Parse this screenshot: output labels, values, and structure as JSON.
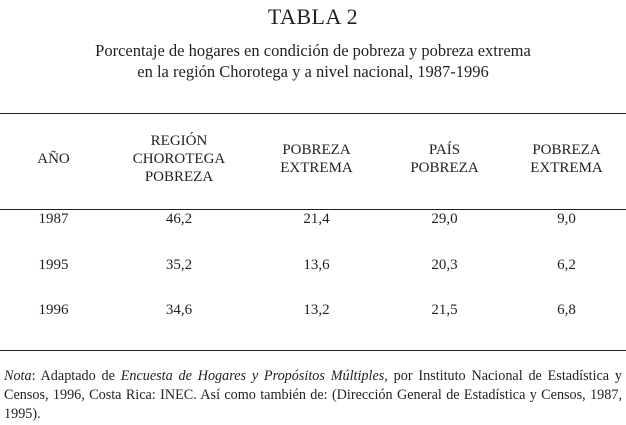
{
  "table_title": "TABLA 2",
  "subtitle_line1": "Porcentaje de hogares en condición de pobreza y pobreza extrema",
  "subtitle_line2": "en la región Chorotega y a nivel nacional, 1987-1996",
  "columns": [
    {
      "line1": "AÑO",
      "line2": "",
      "line3": ""
    },
    {
      "line1": "REGIÓN",
      "line2": "CHOROTEGA",
      "line3": "POBREZA"
    },
    {
      "line1": "POBREZA",
      "line2": "EXTREMA",
      "line3": ""
    },
    {
      "line1": "PAÍS",
      "line2": "POBREZA",
      "line3": ""
    },
    {
      "line1": "POBREZA",
      "line2": "EXTREMA",
      "line3": ""
    }
  ],
  "rows": [
    [
      "1987",
      "46,2",
      "21,4",
      "29,0",
      "9,0"
    ],
    [
      "1995",
      "35,2",
      "13,6",
      "20,3",
      "6,2"
    ],
    [
      "1996",
      "34,6",
      "13,2",
      "21,5",
      "6,8"
    ]
  ],
  "note": {
    "label": "Nota",
    "text_before": ": Adaptado de ",
    "source_title": "Encuesta de Hogares y Propósitos Múltiples",
    "text_after": ", por Instituto Nacional de Estadística y Censos, 1996, Costa Rica: INEC. Así como también de: (Dirección General de Estadística y Censos, 1987, 1995)."
  }
}
